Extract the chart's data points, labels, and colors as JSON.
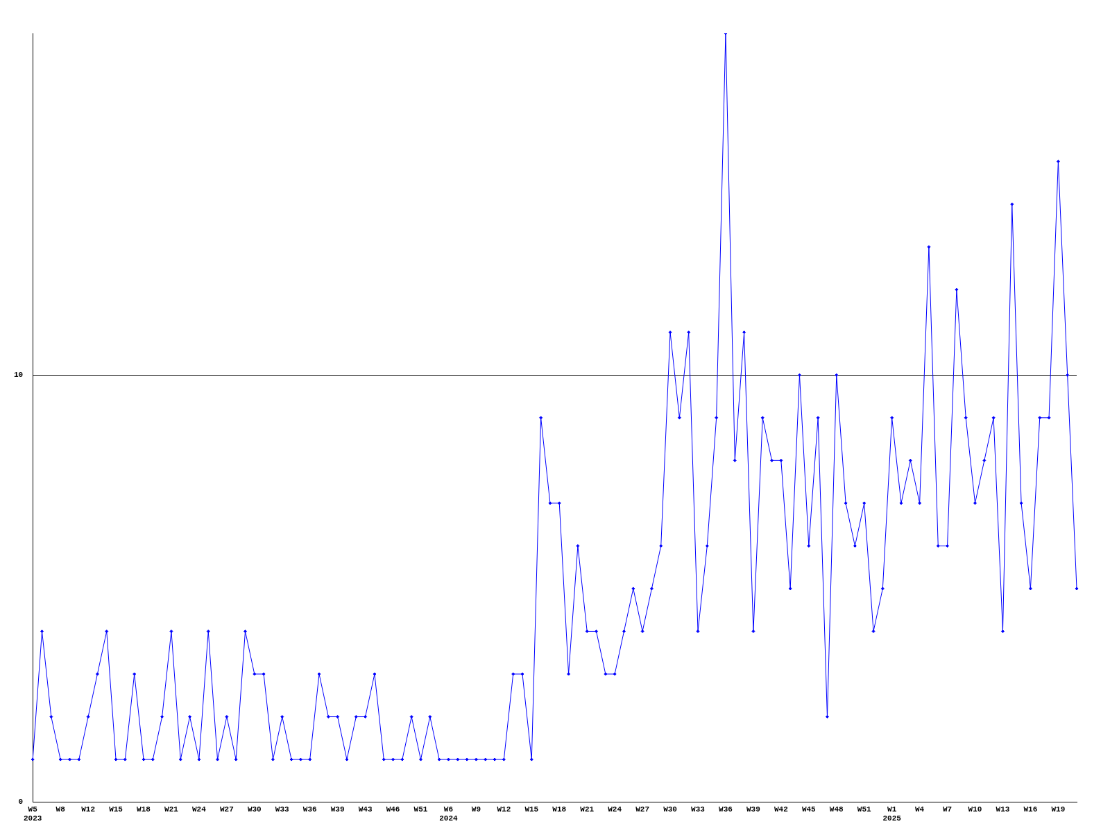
{
  "chart_data": {
    "type": "line",
    "categories": [
      "W5\n2023",
      null,
      null,
      "W8",
      null,
      null,
      "W12",
      null,
      null,
      "W15",
      null,
      null,
      "W18",
      null,
      null,
      "W21",
      null,
      null,
      "W24",
      null,
      null,
      "W27",
      null,
      null,
      "W30",
      null,
      null,
      "W33",
      null,
      null,
      "W36",
      null,
      null,
      "W39",
      null,
      null,
      "W43",
      null,
      null,
      "W46",
      null,
      null,
      "W51",
      null,
      null,
      "W6\n2024",
      null,
      null,
      "W9",
      null,
      null,
      "W12",
      null,
      null,
      "W15",
      null,
      null,
      "W18",
      null,
      null,
      "W21",
      null,
      null,
      "W24",
      null,
      null,
      "W27",
      null,
      null,
      "W30",
      null,
      null,
      "W33",
      null,
      null,
      "W36",
      null,
      null,
      "W39",
      null,
      null,
      "W42",
      null,
      null,
      "W45",
      null,
      null,
      "W48",
      null,
      null,
      "W51",
      null,
      null,
      "W1\n2025",
      null,
      null,
      "W4",
      null,
      null,
      "W7",
      null,
      null,
      "W10",
      null,
      null,
      "W13",
      null,
      null,
      "W16",
      null,
      null,
      "W19",
      null,
      null
    ],
    "series": [
      {
        "color": "#0000ff",
        "values": [
          1,
          4,
          2,
          1,
          1,
          1,
          2,
          3,
          4,
          1,
          1,
          3,
          1,
          1,
          2,
          4,
          1,
          2,
          1,
          4,
          1,
          2,
          1,
          4,
          3,
          3,
          1,
          2,
          1,
          1,
          1,
          3,
          2,
          2,
          1,
          2,
          2,
          3,
          1,
          1,
          1,
          2,
          1,
          2,
          1,
          1,
          1,
          1,
          1,
          1,
          1,
          1,
          3,
          3,
          1,
          9,
          7,
          7,
          3,
          6,
          4,
          4,
          3,
          3,
          4,
          5,
          4,
          5,
          6,
          11,
          9,
          11,
          4,
          6,
          9,
          18,
          8,
          11,
          4,
          9,
          8,
          8,
          5,
          10,
          6,
          9,
          2,
          10,
          7,
          6,
          7,
          4,
          5,
          9,
          7,
          8,
          7,
          13,
          6,
          6,
          12,
          9,
          7,
          8,
          9,
          4,
          14,
          7,
          5,
          9,
          9,
          15,
          10,
          5
        ]
      }
    ],
    "ylim": [
      0,
      18
    ],
    "yticks": [
      0,
      10
    ],
    "grid": "y",
    "legend": false,
    "marker": "diamond",
    "line_style": "solid"
  }
}
